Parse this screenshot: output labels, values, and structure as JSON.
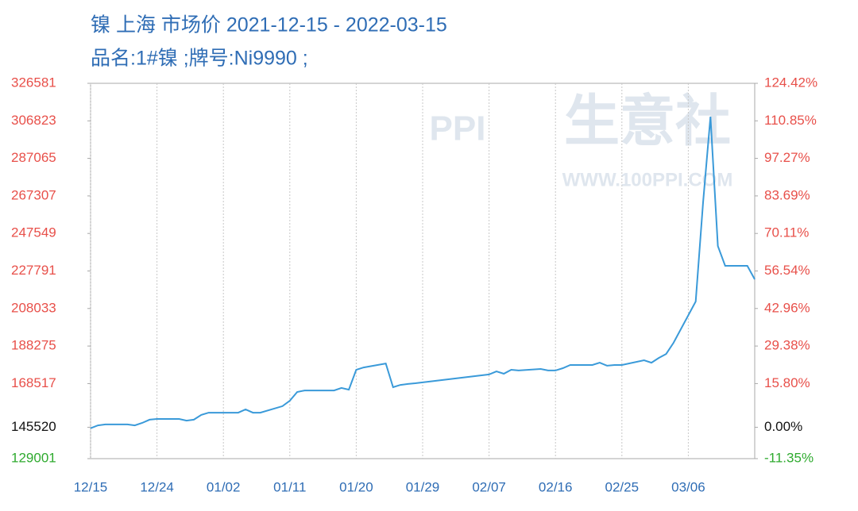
{
  "chart_data": {
    "type": "line",
    "title": "镍 上海 市场价 2021-12-15 - 2022-03-15",
    "subtitle": "品名:1#镍 ;牌号:Ni9990 ;",
    "watermark": {
      "logo": "PPI",
      "text": "生意社",
      "url": "WWW.100PPI.COM"
    },
    "x": [
      "12/15",
      "12/16",
      "12/17",
      "12/20",
      "12/21",
      "12/22",
      "12/23",
      "12/24",
      "12/27",
      "12/28",
      "12/29",
      "12/30",
      "12/31",
      "01/04",
      "01/05",
      "01/06",
      "01/07",
      "01/10",
      "01/11",
      "01/12",
      "01/13",
      "01/14",
      "01/17",
      "01/18",
      "01/19",
      "01/20",
      "01/21",
      "01/24",
      "01/25",
      "01/26",
      "01/27",
      "01/28",
      "02/07",
      "02/08",
      "02/09",
      "02/10",
      "02/11",
      "02/14",
      "02/15",
      "02/16",
      "02/17",
      "02/18",
      "02/21",
      "02/22",
      "02/23",
      "02/24",
      "02/25",
      "02/28",
      "03/01",
      "03/02",
      "03/03",
      "03/04",
      "03/07",
      "03/08",
      "03/09",
      "03/10",
      "03/11",
      "03/14",
      "03/15"
    ],
    "xlim": [
      "12/15",
      "03/15"
    ],
    "xticks": [
      "12/15",
      "12/24",
      "01/02",
      "01/11",
      "01/20",
      "01/29",
      "02/07",
      "02/16",
      "02/25",
      "03/06"
    ],
    "series": [
      {
        "color": "#3a9ad9",
        "values": [
          145000,
          146500,
          147000,
          147000,
          146500,
          147800,
          149500,
          149900,
          149900,
          149000,
          149500,
          152000,
          153200,
          153200,
          154900,
          153200,
          153200,
          156600,
          159500,
          164100,
          164900,
          164900,
          164900,
          166200,
          165300,
          175800,
          177000,
          179100,
          166600,
          167800,
          168300,
          168700,
          173300,
          174900,
          173700,
          175800,
          175400,
          176200,
          175400,
          175400,
          176600,
          178300,
          178300,
          179500,
          177900,
          178300,
          178300,
          180800,
          179500,
          182000,
          184100,
          190000,
          211700,
          263900,
          309000,
          240900,
          230500,
          230500,
          223400
        ]
      }
    ],
    "ylim": [
      129001,
      326581
    ],
    "yticks": [
      129001,
      145520,
      168517,
      188275,
      208033,
      227791,
      247549,
      267307,
      287065,
      306823,
      326581
    ],
    "y2lim": [
      -11.35,
      124.42
    ],
    "y2ticks": [
      {
        "value": -11.35,
        "label": "-11.35%"
      },
      {
        "value": 0,
        "label": "0.00%"
      },
      {
        "value": 15.8,
        "label": "15.80%"
      },
      {
        "value": 29.38,
        "label": "29.38%"
      },
      {
        "value": 42.96,
        "label": "42.96%"
      },
      {
        "value": 56.54,
        "label": "56.54%"
      },
      {
        "value": 70.11,
        "label": "70.11%"
      },
      {
        "value": 83.69,
        "label": "83.69%"
      },
      {
        "value": 97.27,
        "label": "97.27%"
      },
      {
        "value": 110.85,
        "label": "110.85%"
      },
      {
        "value": 124.42,
        "label": "124.42%"
      }
    ],
    "tick_colors": {
      "up": "#e8504a",
      "zero": "#111111",
      "down": "#2eaa2e"
    },
    "grid": true
  }
}
